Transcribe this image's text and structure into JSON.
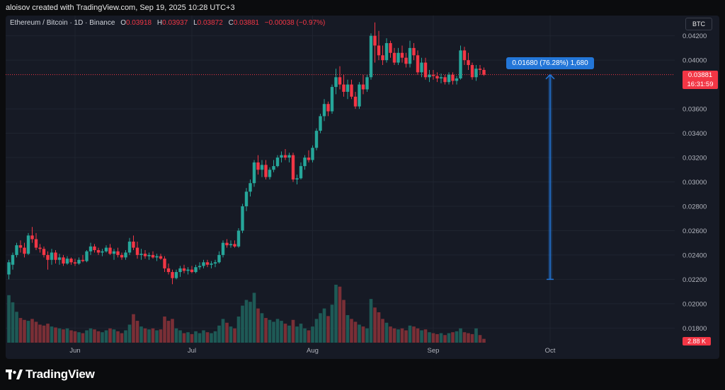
{
  "header": {
    "attribution": "aloisov created with TradingView.com, Sep 19, 2025 10:28 UTC+3"
  },
  "legend": {
    "symbol": "Ethereum / Bitcoin · 1D · Binance",
    "open_label": "O",
    "open_value": "0.03918",
    "high_label": "H",
    "high_value": "0.03937",
    "low_label": "L",
    "low_value": "0.03872",
    "close_label": "C",
    "close_value": "0.03881",
    "change": "−0.00038 (−0.97%)"
  },
  "currency_badge": "BTC",
  "price_tag": {
    "price": "0.03881",
    "countdown": "16:31:59"
  },
  "volume_tag": "2.88 K",
  "measure": {
    "label": "0.01680 (76.28%) 1,680"
  },
  "footer": {
    "brand": "TradingView"
  },
  "colors": {
    "up": "#26a69a",
    "down": "#f23645",
    "vol_up": "#1e5a56",
    "vol_down": "#7a2f36",
    "grid": "#1f2430",
    "accent": "#2376d8",
    "background": "#161a25"
  },
  "chart_data": {
    "type": "candlestick",
    "title": "Ethereum / Bitcoin · 1D · Binance",
    "xlabel": "",
    "ylabel": "",
    "ylim": [
      0.0168,
      0.0432
    ],
    "y_ticks": [
      "0.04200",
      "0.04000",
      "0.03600",
      "0.03400",
      "0.03200",
      "0.03000",
      "0.02800",
      "0.02600",
      "0.02400",
      "0.02200",
      "0.02000",
      "0.01800"
    ],
    "x_ticks": [
      "Jun",
      "Jul",
      "Aug",
      "Sep",
      "Oct"
    ],
    "x_tick_days": [
      17,
      47,
      78,
      109,
      139
    ],
    "grid": true,
    "current_price": 0.03881,
    "measure": {
      "from": 0.022,
      "to": 0.0388,
      "change": 0.0168,
      "percent": 76.28,
      "day": 139
    },
    "candles": [
      {
        "o": 0.0224,
        "h": 0.0236,
        "l": 0.022,
        "c": 0.0234,
        "v": 1.0
      },
      {
        "o": 0.0232,
        "h": 0.0242,
        "l": 0.0228,
        "c": 0.024,
        "v": 0.85
      },
      {
        "o": 0.024,
        "h": 0.025,
        "l": 0.0238,
        "c": 0.0248,
        "v": 0.65
      },
      {
        "o": 0.0248,
        "h": 0.0252,
        "l": 0.0242,
        "c": 0.0246,
        "v": 0.52
      },
      {
        "o": 0.0246,
        "h": 0.025,
        "l": 0.0238,
        "c": 0.0241,
        "v": 0.48
      },
      {
        "o": 0.0241,
        "h": 0.0258,
        "l": 0.024,
        "c": 0.0256,
        "v": 0.46
      },
      {
        "o": 0.0256,
        "h": 0.0263,
        "l": 0.025,
        "c": 0.0253,
        "v": 0.5
      },
      {
        "o": 0.0253,
        "h": 0.0258,
        "l": 0.0244,
        "c": 0.0246,
        "v": 0.44
      },
      {
        "o": 0.0246,
        "h": 0.0249,
        "l": 0.0242,
        "c": 0.0245,
        "v": 0.38
      },
      {
        "o": 0.0245,
        "h": 0.0247,
        "l": 0.0238,
        "c": 0.024,
        "v": 0.36
      },
      {
        "o": 0.024,
        "h": 0.0243,
        "l": 0.0228,
        "c": 0.0236,
        "v": 0.4
      },
      {
        "o": 0.0236,
        "h": 0.0245,
        "l": 0.0232,
        "c": 0.0242,
        "v": 0.34
      },
      {
        "o": 0.0242,
        "h": 0.0244,
        "l": 0.0233,
        "c": 0.0236,
        "v": 0.32
      },
      {
        "o": 0.0236,
        "h": 0.0241,
        "l": 0.0232,
        "c": 0.0238,
        "v": 0.3
      },
      {
        "o": 0.0238,
        "h": 0.024,
        "l": 0.0231,
        "c": 0.0233,
        "v": 0.28
      },
      {
        "o": 0.0233,
        "h": 0.0239,
        "l": 0.0232,
        "c": 0.0237,
        "v": 0.3
      },
      {
        "o": 0.0237,
        "h": 0.0238,
        "l": 0.0232,
        "c": 0.0234,
        "v": 0.26
      },
      {
        "o": 0.0234,
        "h": 0.0237,
        "l": 0.0231,
        "c": 0.0233,
        "v": 0.24
      },
      {
        "o": 0.0233,
        "h": 0.0238,
        "l": 0.0232,
        "c": 0.0236,
        "v": 0.22
      },
      {
        "o": 0.0236,
        "h": 0.024,
        "l": 0.0234,
        "c": 0.0235,
        "v": 0.2
      },
      {
        "o": 0.0235,
        "h": 0.0244,
        "l": 0.0234,
        "c": 0.0243,
        "v": 0.26
      },
      {
        "o": 0.0243,
        "h": 0.025,
        "l": 0.024,
        "c": 0.0247,
        "v": 0.3
      },
      {
        "o": 0.0247,
        "h": 0.0249,
        "l": 0.0242,
        "c": 0.0244,
        "v": 0.28
      },
      {
        "o": 0.0244,
        "h": 0.0246,
        "l": 0.024,
        "c": 0.0242,
        "v": 0.24
      },
      {
        "o": 0.0242,
        "h": 0.0245,
        "l": 0.0239,
        "c": 0.0243,
        "v": 0.22
      },
      {
        "o": 0.0243,
        "h": 0.0248,
        "l": 0.0242,
        "c": 0.0246,
        "v": 0.26
      },
      {
        "o": 0.0246,
        "h": 0.0249,
        "l": 0.024,
        "c": 0.0241,
        "v": 0.3
      },
      {
        "o": 0.0241,
        "h": 0.0245,
        "l": 0.0236,
        "c": 0.0243,
        "v": 0.28
      },
      {
        "o": 0.0243,
        "h": 0.0246,
        "l": 0.0238,
        "c": 0.024,
        "v": 0.24
      },
      {
        "o": 0.024,
        "h": 0.0242,
        "l": 0.0236,
        "c": 0.0238,
        "v": 0.2
      },
      {
        "o": 0.0238,
        "h": 0.0244,
        "l": 0.0236,
        "c": 0.0242,
        "v": 0.26
      },
      {
        "o": 0.0242,
        "h": 0.0254,
        "l": 0.024,
        "c": 0.0251,
        "v": 0.38
      },
      {
        "o": 0.0251,
        "h": 0.0256,
        "l": 0.0244,
        "c": 0.0246,
        "v": 0.6
      },
      {
        "o": 0.0246,
        "h": 0.0251,
        "l": 0.0237,
        "c": 0.024,
        "v": 0.46
      },
      {
        "o": 0.024,
        "h": 0.0245,
        "l": 0.0236,
        "c": 0.0241,
        "v": 0.34
      },
      {
        "o": 0.0241,
        "h": 0.0244,
        "l": 0.0237,
        "c": 0.0239,
        "v": 0.3
      },
      {
        "o": 0.0239,
        "h": 0.0242,
        "l": 0.0236,
        "c": 0.024,
        "v": 0.28
      },
      {
        "o": 0.024,
        "h": 0.0243,
        "l": 0.0237,
        "c": 0.0238,
        "v": 0.3
      },
      {
        "o": 0.0238,
        "h": 0.0241,
        "l": 0.0235,
        "c": 0.0239,
        "v": 0.26
      },
      {
        "o": 0.0239,
        "h": 0.0241,
        "l": 0.0236,
        "c": 0.0237,
        "v": 0.28
      },
      {
        "o": 0.0237,
        "h": 0.0239,
        "l": 0.0226,
        "c": 0.0229,
        "v": 0.55
      },
      {
        "o": 0.0229,
        "h": 0.0233,
        "l": 0.0224,
        "c": 0.0226,
        "v": 0.46
      },
      {
        "o": 0.0226,
        "h": 0.0228,
        "l": 0.0216,
        "c": 0.0221,
        "v": 0.5
      },
      {
        "o": 0.0221,
        "h": 0.0228,
        "l": 0.022,
        "c": 0.0226,
        "v": 0.3
      },
      {
        "o": 0.0226,
        "h": 0.0231,
        "l": 0.0222,
        "c": 0.0229,
        "v": 0.26
      },
      {
        "o": 0.0229,
        "h": 0.0232,
        "l": 0.0225,
        "c": 0.0227,
        "v": 0.2
      },
      {
        "o": 0.0227,
        "h": 0.023,
        "l": 0.0224,
        "c": 0.0228,
        "v": 0.22
      },
      {
        "o": 0.0228,
        "h": 0.0231,
        "l": 0.0225,
        "c": 0.0226,
        "v": 0.18
      },
      {
        "o": 0.0226,
        "h": 0.0232,
        "l": 0.0225,
        "c": 0.023,
        "v": 0.24
      },
      {
        "o": 0.023,
        "h": 0.0234,
        "l": 0.0228,
        "c": 0.0231,
        "v": 0.2
      },
      {
        "o": 0.0231,
        "h": 0.0236,
        "l": 0.0229,
        "c": 0.0234,
        "v": 0.26
      },
      {
        "o": 0.0234,
        "h": 0.0236,
        "l": 0.023,
        "c": 0.0232,
        "v": 0.22
      },
      {
        "o": 0.0232,
        "h": 0.0235,
        "l": 0.0229,
        "c": 0.0233,
        "v": 0.2
      },
      {
        "o": 0.0233,
        "h": 0.0236,
        "l": 0.023,
        "c": 0.0234,
        "v": 0.24
      },
      {
        "o": 0.0234,
        "h": 0.0243,
        "l": 0.0233,
        "c": 0.024,
        "v": 0.36
      },
      {
        "o": 0.024,
        "h": 0.0252,
        "l": 0.0238,
        "c": 0.025,
        "v": 0.5
      },
      {
        "o": 0.025,
        "h": 0.0253,
        "l": 0.0246,
        "c": 0.0248,
        "v": 0.42
      },
      {
        "o": 0.0248,
        "h": 0.0252,
        "l": 0.0246,
        "c": 0.0249,
        "v": 0.34
      },
      {
        "o": 0.0249,
        "h": 0.0252,
        "l": 0.0246,
        "c": 0.0247,
        "v": 0.3
      },
      {
        "o": 0.0247,
        "h": 0.0262,
        "l": 0.0246,
        "c": 0.026,
        "v": 0.55
      },
      {
        "o": 0.026,
        "h": 0.0282,
        "l": 0.0258,
        "c": 0.028,
        "v": 0.78
      },
      {
        "o": 0.028,
        "h": 0.0295,
        "l": 0.0276,
        "c": 0.0292,
        "v": 0.9
      },
      {
        "o": 0.0292,
        "h": 0.0302,
        "l": 0.0288,
        "c": 0.0299,
        "v": 0.86
      },
      {
        "o": 0.0299,
        "h": 0.0318,
        "l": 0.0296,
        "c": 0.0316,
        "v": 1.05
      },
      {
        "o": 0.0316,
        "h": 0.0322,
        "l": 0.0306,
        "c": 0.031,
        "v": 0.72
      },
      {
        "o": 0.031,
        "h": 0.0318,
        "l": 0.0304,
        "c": 0.0314,
        "v": 0.62
      },
      {
        "o": 0.0314,
        "h": 0.0318,
        "l": 0.0302,
        "c": 0.0304,
        "v": 0.52
      },
      {
        "o": 0.0304,
        "h": 0.0312,
        "l": 0.0302,
        "c": 0.031,
        "v": 0.48
      },
      {
        "o": 0.031,
        "h": 0.0318,
        "l": 0.0308,
        "c": 0.0313,
        "v": 0.44
      },
      {
        "o": 0.0313,
        "h": 0.0322,
        "l": 0.0312,
        "c": 0.032,
        "v": 0.5
      },
      {
        "o": 0.032,
        "h": 0.0325,
        "l": 0.0316,
        "c": 0.0322,
        "v": 0.46
      },
      {
        "o": 0.0322,
        "h": 0.0327,
        "l": 0.0318,
        "c": 0.032,
        "v": 0.4
      },
      {
        "o": 0.032,
        "h": 0.0324,
        "l": 0.0316,
        "c": 0.0322,
        "v": 0.36
      },
      {
        "o": 0.0322,
        "h": 0.0324,
        "l": 0.03,
        "c": 0.0302,
        "v": 0.48
      },
      {
        "o": 0.0302,
        "h": 0.0306,
        "l": 0.0298,
        "c": 0.0303,
        "v": 0.34
      },
      {
        "o": 0.0303,
        "h": 0.0316,
        "l": 0.0302,
        "c": 0.0313,
        "v": 0.4
      },
      {
        "o": 0.0313,
        "h": 0.0322,
        "l": 0.031,
        "c": 0.032,
        "v": 0.3
      },
      {
        "o": 0.032,
        "h": 0.0326,
        "l": 0.0316,
        "c": 0.0318,
        "v": 0.26
      },
      {
        "o": 0.0318,
        "h": 0.033,
        "l": 0.0316,
        "c": 0.0328,
        "v": 0.34
      },
      {
        "o": 0.0328,
        "h": 0.0344,
        "l": 0.0326,
        "c": 0.0342,
        "v": 0.5
      },
      {
        "o": 0.0342,
        "h": 0.0356,
        "l": 0.034,
        "c": 0.0354,
        "v": 0.62
      },
      {
        "o": 0.0354,
        "h": 0.0368,
        "l": 0.035,
        "c": 0.0364,
        "v": 0.72
      },
      {
        "o": 0.0364,
        "h": 0.0366,
        "l": 0.0354,
        "c": 0.0358,
        "v": 0.56
      },
      {
        "o": 0.0358,
        "h": 0.038,
        "l": 0.0356,
        "c": 0.0378,
        "v": 0.8
      },
      {
        "o": 0.0378,
        "h": 0.0393,
        "l": 0.0372,
        "c": 0.0386,
        "v": 1.22
      },
      {
        "o": 0.0386,
        "h": 0.0395,
        "l": 0.0376,
        "c": 0.038,
        "v": 1.18
      },
      {
        "o": 0.038,
        "h": 0.0388,
        "l": 0.037,
        "c": 0.0374,
        "v": 0.9
      },
      {
        "o": 0.0374,
        "h": 0.0384,
        "l": 0.0368,
        "c": 0.038,
        "v": 0.58
      },
      {
        "o": 0.038,
        "h": 0.0384,
        "l": 0.0368,
        "c": 0.037,
        "v": 0.5
      },
      {
        "o": 0.037,
        "h": 0.0374,
        "l": 0.036,
        "c": 0.0362,
        "v": 0.44
      },
      {
        "o": 0.0362,
        "h": 0.0382,
        "l": 0.036,
        "c": 0.038,
        "v": 0.38
      },
      {
        "o": 0.038,
        "h": 0.0388,
        "l": 0.0372,
        "c": 0.0376,
        "v": 0.34
      },
      {
        "o": 0.0376,
        "h": 0.0388,
        "l": 0.0374,
        "c": 0.0386,
        "v": 0.3
      },
      {
        "o": 0.0386,
        "h": 0.0422,
        "l": 0.0384,
        "c": 0.042,
        "v": 0.92
      },
      {
        "o": 0.042,
        "h": 0.0431,
        "l": 0.0398,
        "c": 0.0412,
        "v": 0.74
      },
      {
        "o": 0.0412,
        "h": 0.0424,
        "l": 0.04,
        "c": 0.0404,
        "v": 0.64
      },
      {
        "o": 0.0404,
        "h": 0.0412,
        "l": 0.0396,
        "c": 0.04,
        "v": 0.5
      },
      {
        "o": 0.04,
        "h": 0.0418,
        "l": 0.0398,
        "c": 0.0414,
        "v": 0.42
      },
      {
        "o": 0.0414,
        "h": 0.0416,
        "l": 0.0402,
        "c": 0.0406,
        "v": 0.34
      },
      {
        "o": 0.0406,
        "h": 0.041,
        "l": 0.0396,
        "c": 0.0398,
        "v": 0.3
      },
      {
        "o": 0.0398,
        "h": 0.041,
        "l": 0.0396,
        "c": 0.0406,
        "v": 0.28
      },
      {
        "o": 0.0406,
        "h": 0.0412,
        "l": 0.0398,
        "c": 0.0402,
        "v": 0.3
      },
      {
        "o": 0.0402,
        "h": 0.0406,
        "l": 0.0394,
        "c": 0.0397,
        "v": 0.26
      },
      {
        "o": 0.0397,
        "h": 0.0416,
        "l": 0.0394,
        "c": 0.041,
        "v": 0.36
      },
      {
        "o": 0.041,
        "h": 0.0414,
        "l": 0.04,
        "c": 0.0404,
        "v": 0.34
      },
      {
        "o": 0.0404,
        "h": 0.0408,
        "l": 0.0388,
        "c": 0.039,
        "v": 0.3
      },
      {
        "o": 0.039,
        "h": 0.0402,
        "l": 0.0386,
        "c": 0.0398,
        "v": 0.26
      },
      {
        "o": 0.0398,
        "h": 0.0402,
        "l": 0.0384,
        "c": 0.0386,
        "v": 0.28
      },
      {
        "o": 0.0386,
        "h": 0.0392,
        "l": 0.0382,
        "c": 0.0388,
        "v": 0.22
      },
      {
        "o": 0.0388,
        "h": 0.0392,
        "l": 0.0384,
        "c": 0.0387,
        "v": 0.2
      },
      {
        "o": 0.0387,
        "h": 0.039,
        "l": 0.0382,
        "c": 0.0385,
        "v": 0.18
      },
      {
        "o": 0.0385,
        "h": 0.0389,
        "l": 0.0381,
        "c": 0.0386,
        "v": 0.2
      },
      {
        "o": 0.0386,
        "h": 0.0388,
        "l": 0.038,
        "c": 0.0382,
        "v": 0.16
      },
      {
        "o": 0.0382,
        "h": 0.039,
        "l": 0.038,
        "c": 0.0388,
        "v": 0.2
      },
      {
        "o": 0.0388,
        "h": 0.039,
        "l": 0.038,
        "c": 0.0383,
        "v": 0.22
      },
      {
        "o": 0.0383,
        "h": 0.0387,
        "l": 0.038,
        "c": 0.0385,
        "v": 0.24
      },
      {
        "o": 0.0385,
        "h": 0.0412,
        "l": 0.0384,
        "c": 0.0408,
        "v": 0.3
      },
      {
        "o": 0.0408,
        "h": 0.0411,
        "l": 0.0396,
        "c": 0.04,
        "v": 0.22
      },
      {
        "o": 0.04,
        "h": 0.0406,
        "l": 0.0392,
        "c": 0.0396,
        "v": 0.2
      },
      {
        "o": 0.0396,
        "h": 0.0398,
        "l": 0.0384,
        "c": 0.0386,
        "v": 0.18
      },
      {
        "o": 0.0386,
        "h": 0.0396,
        "l": 0.0383,
        "c": 0.0393,
        "v": 0.3
      },
      {
        "o": 0.0393,
        "h": 0.0396,
        "l": 0.0388,
        "c": 0.0392,
        "v": 0.16
      },
      {
        "o": 0.0392,
        "h": 0.0394,
        "l": 0.0387,
        "c": 0.0388,
        "v": 0.08
      }
    ]
  }
}
